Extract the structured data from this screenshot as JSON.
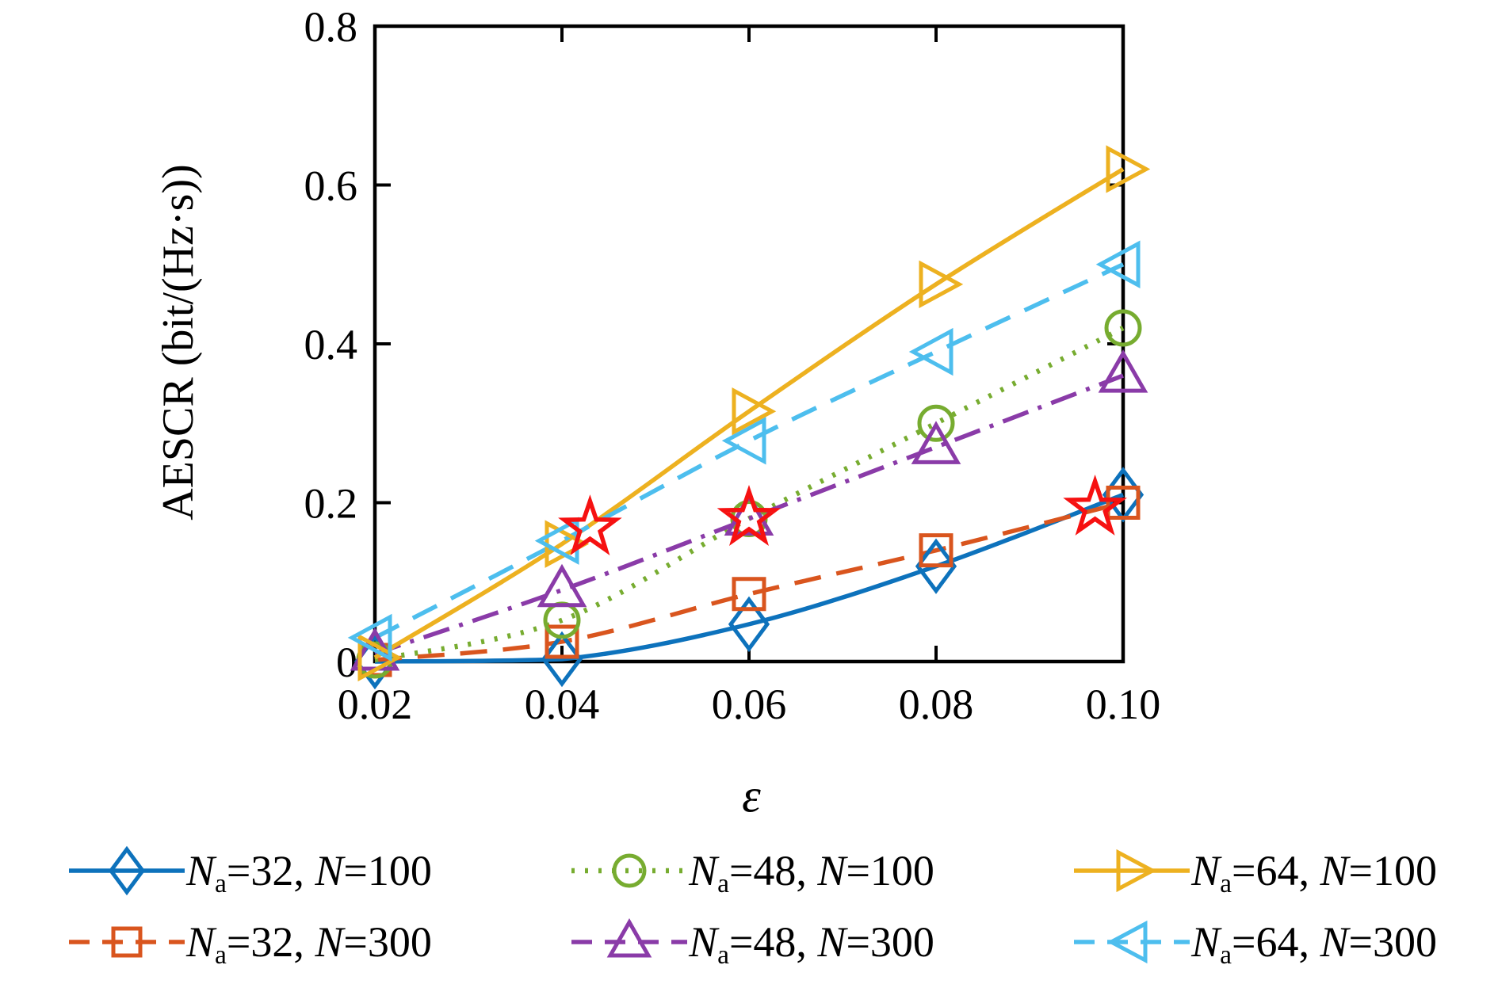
{
  "figure": {
    "background": "#ffffff"
  },
  "chart_data": {
    "type": "line",
    "title": "",
    "xlabel": "ε",
    "ylabel": "AESCR (bit/(Hz·s))",
    "xlim": [
      0.02,
      0.1
    ],
    "ylim": [
      0,
      0.8
    ],
    "x_ticks": [
      0.02,
      0.04,
      0.06,
      0.08,
      0.1
    ],
    "x_tick_labels": [
      "0.02",
      "0.04",
      "0.06",
      "0.08",
      "0.10"
    ],
    "y_ticks": [
      0,
      0.2,
      0.4,
      0.6,
      0.8
    ],
    "y_tick_labels": [
      "0",
      "0.2",
      "0.4",
      "0.6",
      "0.8"
    ],
    "grid": false,
    "box": true,
    "legend_position": "below",
    "legend_columns": 3,
    "x": [
      0.02,
      0.04,
      0.06,
      0.08,
      0.1
    ],
    "series": [
      {
        "name": "Na=32, N=100",
        "na": "32",
        "n": "100",
        "color": "#0D72BC",
        "line": "solid",
        "marker": "diamond",
        "values": [
          0.0,
          0.003,
          0.047,
          0.12,
          0.21
        ]
      },
      {
        "name": "Na=32, N=300",
        "na": "32",
        "n": "300",
        "color": "#D9551E",
        "line": "dashed",
        "marker": "square",
        "values": [
          0.002,
          0.025,
          0.085,
          0.14,
          0.2
        ]
      },
      {
        "name": "Na=48, N=100",
        "na": "48",
        "n": "100",
        "color": "#77AC30",
        "line": "dotted",
        "marker": "circle",
        "values": [
          0.002,
          0.052,
          0.18,
          0.3,
          0.42
        ]
      },
      {
        "name": "Na=48, N=300",
        "na": "48",
        "n": "300",
        "color": "#8A3BA8",
        "line": "dashdot",
        "marker": "triangle-up",
        "values": [
          0.01,
          0.09,
          0.18,
          0.27,
          0.36
        ]
      },
      {
        "name": "Na=64, N=100",
        "na": "64",
        "n": "100",
        "color": "#EDB120",
        "line": "solid",
        "marker": "triangle-right",
        "values": [
          0.005,
          0.148,
          0.315,
          0.475,
          0.62
        ]
      },
      {
        "name": "Na=64, N=300",
        "na": "64",
        "n": "300",
        "color": "#4DBEEE",
        "line": "dashed",
        "marker": "triangle-left",
        "values": [
          0.03,
          0.152,
          0.278,
          0.39,
          0.5
        ]
      }
    ],
    "annotations": {
      "name": "selected-operating-points",
      "marker": "star",
      "color": "#F61111",
      "points": [
        [
          0.043,
          0.168
        ],
        [
          0.06,
          0.18
        ],
        [
          0.097,
          0.193
        ]
      ]
    },
    "legend_symbol": {
      "var": "N",
      "sub": "a",
      "eq": "=",
      "sep": ", "
    }
  }
}
